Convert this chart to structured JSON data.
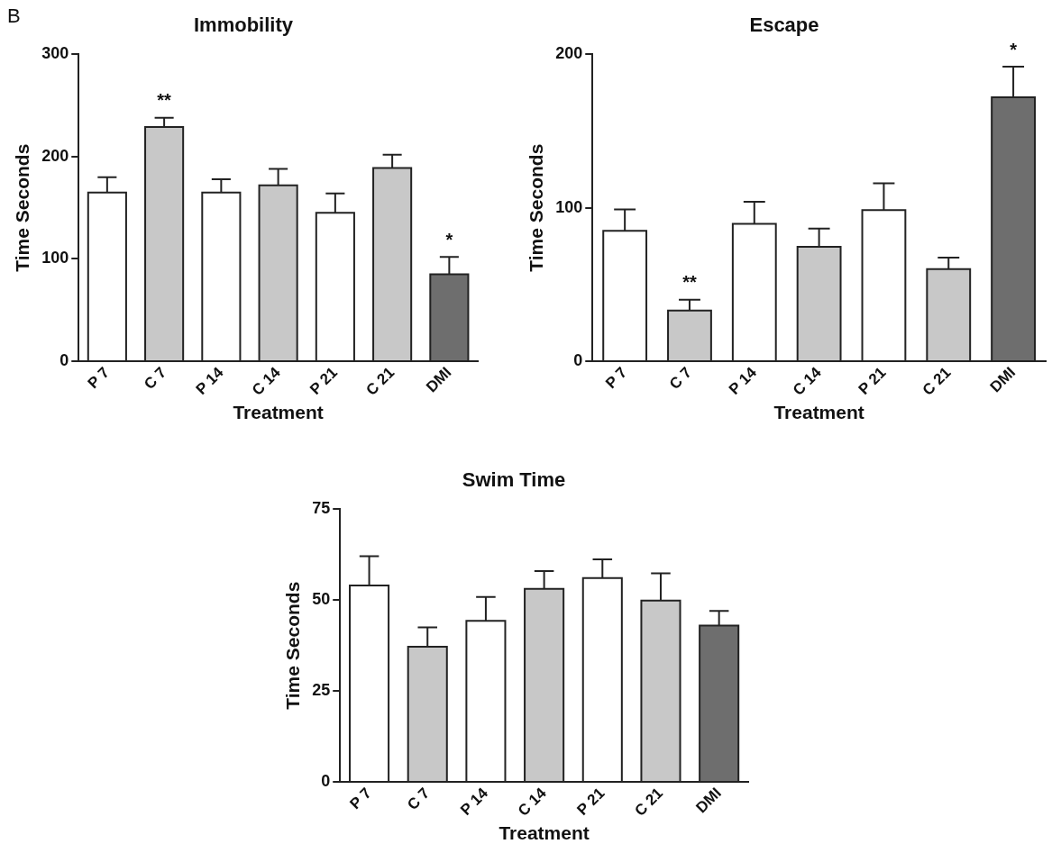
{
  "chart_data": [
    {
      "type": "bar",
      "title": "Immobility",
      "xlabel": "Treatment",
      "ylabel": "Time Seconds",
      "categories": [
        "P 7",
        "C 7",
        "P 14",
        "C 14",
        "P 21",
        "C 21",
        "DMI"
      ],
      "values": [
        165,
        229,
        165,
        172,
        145,
        189,
        85
      ],
      "errors": [
        [
          165,
          180
        ],
        [
          229,
          238
        ],
        [
          165,
          178
        ],
        [
          172,
          188
        ],
        [
          145,
          164
        ],
        [
          189,
          202
        ],
        [
          85,
          102
        ]
      ],
      "colors": [
        "#ffffff",
        "#c8c8c8",
        "#ffffff",
        "#c8c8c8",
        "#ffffff",
        "#c8c8c8",
        "#6e6e6e"
      ],
      "ylim": [
        0,
        300
      ],
      "yticks": [
        0,
        100,
        200,
        300
      ],
      "grid": false,
      "legend": false,
      "annotations": [
        "B",
        {
          "text": "**",
          "x": "C 7",
          "y": 229
        },
        {
          "text": "*",
          "x": "DMI",
          "y": 85
        }
      ]
    },
    {
      "type": "bar",
      "title": "Escape",
      "xlabel": "Treatment",
      "ylabel": "Time Seconds",
      "categories": [
        "P 7",
        "C 7",
        "P 14",
        "C 14",
        "P 21",
        "C 21",
        "DMI"
      ],
      "values": [
        85,
        33,
        89.5,
        74.5,
        98.5,
        60,
        172
      ],
      "errors": [
        [
          85,
          99
        ],
        [
          33,
          40
        ],
        [
          89.5,
          104
        ],
        [
          74.5,
          86.5
        ],
        [
          98.5,
          116
        ],
        [
          60,
          67.5
        ],
        [
          172,
          192
        ]
      ],
      "colors": [
        "#ffffff",
        "#c8c8c8",
        "#ffffff",
        "#c8c8c8",
        "#ffffff",
        "#c8c8c8",
        "#6e6e6e"
      ],
      "ylim": [
        0,
        200
      ],
      "yticks": [
        0,
        100,
        200
      ],
      "grid": false,
      "legend": false,
      "annotations": [
        {
          "text": "**",
          "x": "C 7",
          "y": 33
        },
        {
          "text": "*",
          "x": "DMI",
          "y": 172
        }
      ]
    },
    {
      "type": "bar",
      "title": "Swim Time",
      "xlabel": "Treatment",
      "ylabel": "Time Seconds",
      "categories": [
        "P 7",
        "C 7",
        "P 14",
        "C 14",
        "P 21",
        "C 21",
        "DMI"
      ],
      "values": [
        54,
        37.2,
        44.3,
        53.1,
        56.1,
        49.9,
        43
      ],
      "errors": [
        [
          54,
          62.1
        ],
        [
          37.2,
          42.5
        ],
        [
          44.3,
          50.9
        ],
        [
          53.1,
          58
        ],
        [
          56.1,
          61.2
        ],
        [
          49.9,
          57.4
        ],
        [
          43,
          47
        ]
      ],
      "colors": [
        "#ffffff",
        "#c8c8c8",
        "#ffffff",
        "#c8c8c8",
        "#ffffff",
        "#c8c8c8",
        "#6e6e6e"
      ],
      "ylim": [
        0,
        75
      ],
      "yticks": [
        0,
        25,
        50,
        75
      ],
      "grid": false,
      "legend": false
    }
  ]
}
